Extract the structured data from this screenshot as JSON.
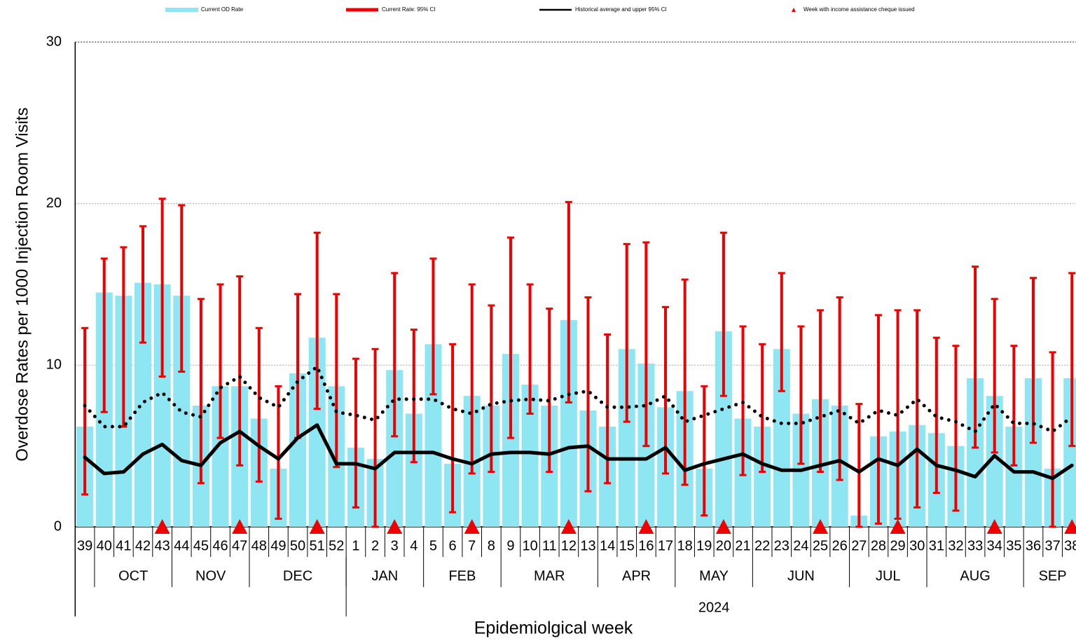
{
  "chart_data": {
    "type": "bar",
    "y_label": "Overdose Rates per 1000 Injection Room Visits",
    "x_label": "Epidemiolgical week",
    "categories": [
      "39",
      "40",
      "41",
      "42",
      "43",
      "44",
      "45",
      "46",
      "47",
      "48",
      "49",
      "50",
      "51",
      "52",
      "1",
      "2",
      "3",
      "4",
      "5",
      "6",
      "7",
      "8",
      "9",
      "10",
      "11",
      "12",
      "13",
      "14",
      "15",
      "16",
      "17",
      "18",
      "19",
      "20",
      "21",
      "22",
      "23",
      "24",
      "25",
      "26",
      "27",
      "28",
      "29",
      "30",
      "31",
      "32",
      "33",
      "34",
      "35",
      "36",
      "37",
      "38"
    ],
    "months": [
      null,
      "OCT",
      "OCT",
      "OCT",
      "OCT",
      "NOV",
      "NOV",
      "NOV",
      "NOV",
      "DEC",
      "DEC",
      "DEC",
      "DEC",
      "DEC",
      "JAN",
      "JAN",
      "JAN",
      "JAN",
      "FEB",
      "FEB",
      "FEB",
      "FEB",
      "MAR",
      "MAR",
      "MAR",
      "MAR",
      "MAR",
      "APR",
      "APR",
      "APR",
      "APR",
      "MAY",
      "MAY",
      "MAY",
      "MAY",
      "JUN",
      "JUN",
      "JUN",
      "JUN",
      "JUN",
      "JUL",
      "JUL",
      "JUL",
      "JUL",
      "AUG",
      "AUG",
      "AUG",
      "AUG",
      "AUG",
      "SEP",
      "SEP",
      "SEP"
    ],
    "years": [
      null,
      null,
      null,
      null,
      null,
      null,
      null,
      null,
      null,
      null,
      null,
      null,
      null,
      null,
      "2024",
      "2024",
      "2024",
      "2024",
      "2024",
      "2024",
      "2024",
      "2024",
      "2024",
      "2024",
      "2024",
      "2024",
      "2024",
      "2024",
      "2024",
      "2024",
      "2024",
      "2024",
      "2024",
      "2024",
      "2024",
      "2024",
      "2024",
      "2024",
      "2024",
      "2024",
      "2024",
      "2024",
      "2024",
      "2024",
      "2024",
      "2024",
      "2024",
      "2024",
      "2024",
      "2024",
      "2024",
      "2024"
    ],
    "ylim": [
      0,
      30
    ],
    "yticks": [
      0,
      10,
      20,
      30
    ],
    "grid": true,
    "series": [
      {
        "name": "Current OD Rate",
        "color": "#8ee6f2",
        "values": [
          6.2,
          14.5,
          14.3,
          15.1,
          15.0,
          14.3,
          7.5,
          8.7,
          8.7,
          6.7,
          3.6,
          9.5,
          11.7,
          8.7,
          4.9,
          4.2,
          9.7,
          7.0,
          11.3,
          3.9,
          8.1,
          7.5,
          10.7,
          8.8,
          7.5,
          12.8,
          7.2,
          6.2,
          11.0,
          10.1,
          7.4,
          8.4,
          3.6,
          12.1,
          6.7,
          6.2,
          11.0,
          7.0,
          7.9,
          7.5,
          0.7,
          5.6,
          5.9,
          6.3,
          5.8,
          5.0,
          9.2,
          8.1,
          6.2,
          9.2,
          3.6,
          9.2
        ]
      },
      {
        "name": "Current Rate: 95% CI",
        "color": "#ee0000",
        "low": [
          2.0,
          7.1,
          6.2,
          11.4,
          9.3,
          9.6,
          2.7,
          5.5,
          3.8,
          2.8,
          0.5,
          5.5,
          7.3,
          3.7,
          1.2,
          0,
          5.6,
          4.0,
          8.2,
          0.9,
          3.3,
          3.4,
          5.5,
          7.0,
          3.4,
          7.7,
          2.2,
          2.7,
          6.5,
          5.0,
          3.3,
          2.6,
          0.7,
          8.1,
          3.2,
          3.4,
          8.4,
          3.9,
          3.4,
          2.9,
          0,
          0.2,
          0.5,
          1.2,
          2.1,
          1.0,
          4.9,
          4.6,
          3.8,
          5.2,
          0,
          5.0
        ],
        "high": [
          12.3,
          16.6,
          17.3,
          18.6,
          20.3,
          19.9,
          14.1,
          15.0,
          15.5,
          12.3,
          8.7,
          14.4,
          18.2,
          14.4,
          10.4,
          11.0,
          15.7,
          12.2,
          16.6,
          11.3,
          15.0,
          13.7,
          17.9,
          15.0,
          13.5,
          20.1,
          14.2,
          11.9,
          17.5,
          17.6,
          13.6,
          15.3,
          8.7,
          18.2,
          12.4,
          11.3,
          15.7,
          12.4,
          13.4,
          14.2,
          7.6,
          13.1,
          13.4,
          13.4,
          11.7,
          11.2,
          16.1,
          14.1,
          11.2,
          15.4,
          10.8,
          15.7
        ]
      },
      {
        "name": "Historical average and upper 95% CI",
        "color": "#000000",
        "values": [
          4.3,
          3.3,
          3.4,
          4.5,
          5.1,
          4.1,
          3.8,
          5.2,
          5.9,
          5.0,
          4.2,
          5.5,
          6.3,
          3.9,
          3.9,
          3.6,
          4.6,
          4.6,
          4.6,
          4.2,
          3.9,
          4.5,
          4.6,
          4.6,
          4.5,
          4.9,
          5.0,
          4.2,
          4.2,
          4.2,
          4.9,
          3.5,
          3.9,
          4.2,
          4.5,
          3.9,
          3.5,
          3.5,
          3.8,
          4.1,
          3.4,
          4.2,
          3.8,
          4.8,
          3.8,
          3.5,
          3.1,
          4.4,
          3.4,
          3.4,
          3.0,
          3.8
        ],
        "upper": [
          7.5,
          6.2,
          6.2,
          7.7,
          8.3,
          7.1,
          6.8,
          8.6,
          9.3,
          8.0,
          7.4,
          9.0,
          9.9,
          7.1,
          6.9,
          6.6,
          7.9,
          7.9,
          7.9,
          7.3,
          7.0,
          7.6,
          7.8,
          7.9,
          7.8,
          8.2,
          8.4,
          7.4,
          7.4,
          7.5,
          8.1,
          6.5,
          6.9,
          7.3,
          7.7,
          6.8,
          6.4,
          6.4,
          6.8,
          7.2,
          6.4,
          7.2,
          6.9,
          7.9,
          6.8,
          6.5,
          5.9,
          7.6,
          6.4,
          6.4,
          5.9,
          6.8
        ]
      },
      {
        "name": "Week with income assistance cheque issued",
        "color": "#ee0000",
        "values": [
          null,
          null,
          null,
          null,
          0,
          null,
          null,
          null,
          0,
          null,
          null,
          null,
          0,
          null,
          null,
          null,
          0,
          null,
          null,
          null,
          0,
          null,
          null,
          null,
          null,
          0,
          null,
          null,
          null,
          0,
          null,
          null,
          null,
          0,
          null,
          null,
          null,
          null,
          0,
          null,
          null,
          null,
          0,
          null,
          null,
          null,
          null,
          0,
          null,
          null,
          null,
          0
        ]
      }
    ]
  }
}
